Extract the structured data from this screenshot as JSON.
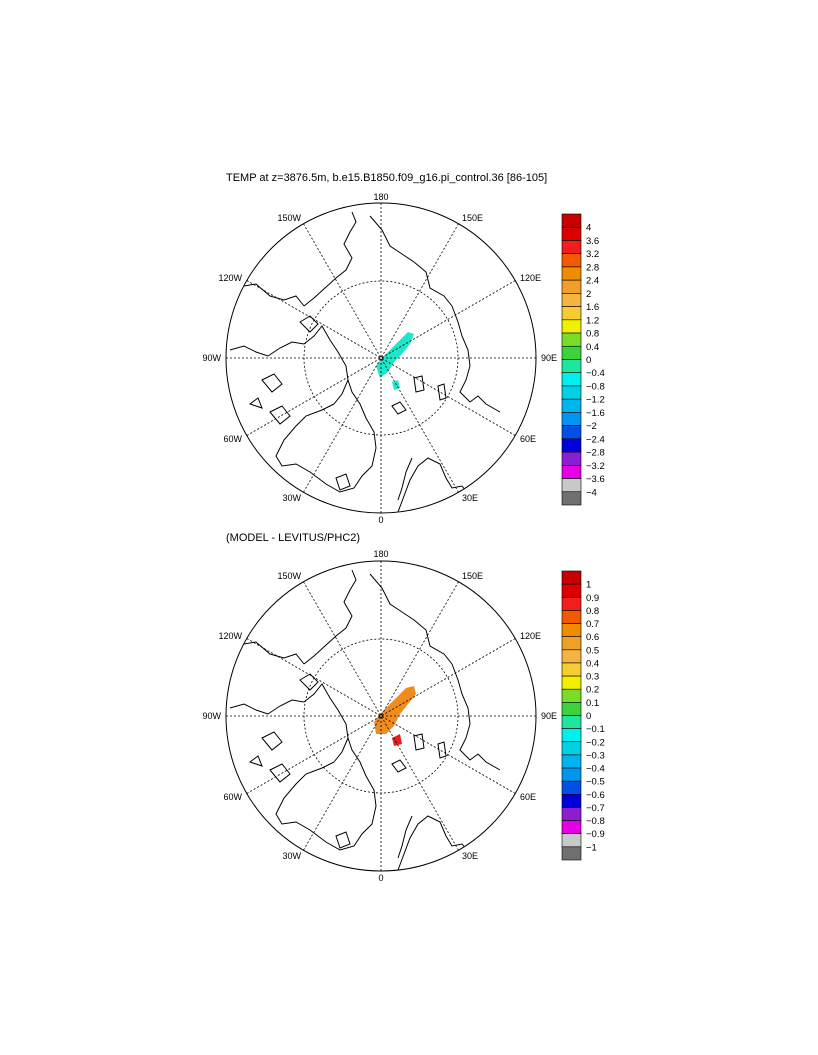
{
  "chart_data": [
    {
      "type": "heatmap",
      "projection": "north-polar-stereographic",
      "title": "TEMP at z=3876.5m, b.e15.B1850.f09_g16.pi_control.36 [86-105]",
      "longitude_labels": [
        "180",
        "150E",
        "120E",
        "90E",
        "60E",
        "30E",
        "0",
        "30W",
        "60W",
        "90W",
        "120W",
        "150W"
      ],
      "colorbar": {
        "levels": [
          "4",
          "3.6",
          "3.2",
          "2.8",
          "2.4",
          "2",
          "1.6",
          "1.2",
          "0.8",
          "0.4",
          "0",
          "−0.4",
          "−0.8",
          "−1.2",
          "−1.6",
          "−2",
          "−2.4",
          "−2.8",
          "−3.2",
          "−3.6",
          "−4"
        ],
        "colors": [
          "#c80000",
          "#dc0000",
          "#f01e1e",
          "#f05a00",
          "#f08c00",
          "#f0a028",
          "#f5b441",
          "#f5cd32",
          "#f0f000",
          "#78dc28",
          "#3cd23c",
          "#1ee6a0",
          "#00f0f0",
          "#00d2e6",
          "#00b4f0",
          "#0096f0",
          "#0050e6",
          "#0000dc",
          "#8c1ed2",
          "#e600e6",
          "#c8c8c8",
          "#707070"
        ]
      },
      "data_patches": [
        {
          "value_range": [
            -0.4,
            0
          ],
          "color": "#1ee6c8",
          "region": "ridge along 90E-270E axis north of Greenland"
        },
        {
          "value_range": [
            -0.4,
            0
          ],
          "color": "#1ee6c8",
          "region": "small patch near Fram Strait"
        }
      ]
    },
    {
      "type": "heatmap",
      "projection": "north-polar-stereographic",
      "title": "(MODEL - LEVITUS/PHC2)",
      "longitude_labels": [
        "180",
        "150E",
        "120E",
        "90E",
        "60E",
        "30E",
        "0",
        "30W",
        "60W",
        "90W",
        "120W",
        "150W"
      ],
      "colorbar": {
        "levels": [
          "1",
          "0.9",
          "0.8",
          "0.7",
          "0.6",
          "0.5",
          "0.4",
          "0.3",
          "0.2",
          "0.1",
          "0",
          "−0.1",
          "−0.2",
          "−0.3",
          "−0.4",
          "−0.5",
          "−0.6",
          "−0.7",
          "−0.8",
          "−0.9",
          "−1"
        ],
        "colors": [
          "#c80000",
          "#dc0000",
          "#f01e1e",
          "#f05a00",
          "#f08c00",
          "#f0a028",
          "#f5b441",
          "#f5cd32",
          "#f0f000",
          "#78dc28",
          "#3cd23c",
          "#1ee6a0",
          "#00f0f0",
          "#00d2e6",
          "#00b4f0",
          "#0096f0",
          "#0050e6",
          "#0000dc",
          "#8c1ed2",
          "#e600e6",
          "#c8c8c8",
          "#707070"
        ]
      },
      "data_patches": [
        {
          "value_range": [
            0.5,
            0.6
          ],
          "color": "#f08c1e",
          "region": "ridge along 90E-270E axis north of Greenland"
        },
        {
          "value_range": [
            0.7,
            0.8
          ],
          "color": "#e61e1e",
          "region": "small patch near Fram Strait"
        }
      ]
    }
  ]
}
